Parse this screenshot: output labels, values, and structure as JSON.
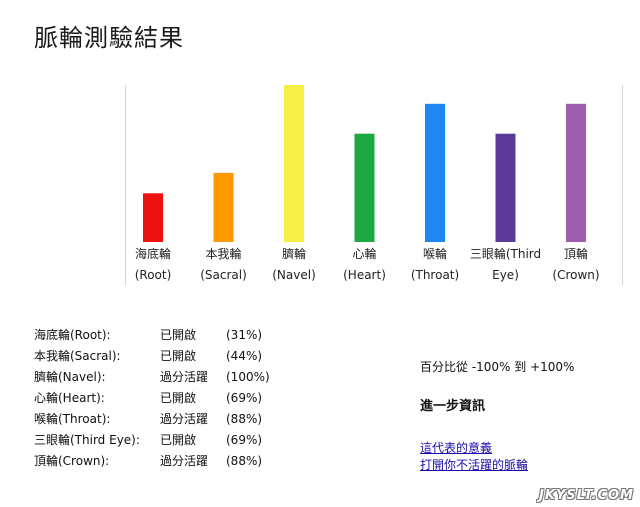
{
  "page": {
    "title": "脈輪測驗結果"
  },
  "chart_data": {
    "type": "bar",
    "categories": [
      [
        "海底輪",
        "(Root)"
      ],
      [
        "本我輪",
        "(Sacral)"
      ],
      [
        "臍輪",
        "(Navel)"
      ],
      [
        "心輪",
        "(Heart)"
      ],
      [
        "喉輪",
        "(Throat)"
      ],
      [
        "三眼輪(Third",
        "Eye)"
      ],
      [
        "頂輪",
        "(Crown)"
      ]
    ],
    "values": [
      31,
      44,
      100,
      69,
      88,
      69,
      88
    ],
    "colors": [
      "#ee1111",
      "#ff9900",
      "#f5ee44",
      "#1ca843",
      "#1e88f0",
      "#5c3b98",
      "#a05ead"
    ],
    "ylim": [
      -100,
      100
    ],
    "grid": false,
    "legend": "none"
  },
  "summary": [
    {
      "name": "海底輪(Root):",
      "state": "已開啟",
      "pct": "(31%)"
    },
    {
      "name": "本我輪(Sacral):",
      "state": "已開啟",
      "pct": "(44%)"
    },
    {
      "name": "臍輪(Navel):",
      "state": "過分活躍",
      "pct": "(100%)"
    },
    {
      "name": "心輪(Heart):",
      "state": "已開啟",
      "pct": "(69%)"
    },
    {
      "name": "喉輪(Throat):",
      "state": "過分活躍",
      "pct": "(88%)"
    },
    {
      "name": "三眼輪(Third Eye):",
      "state": "已開啟",
      "pct": "(69%)"
    },
    {
      "name": "頂輪(Crown):",
      "state": "過分活躍",
      "pct": "(88%)"
    }
  ],
  "info": {
    "range_text": "百分比從 -100% 到 +100%",
    "more_title": "進一步資訊",
    "link_meaning": "這代表的意義",
    "link_open": "打開你不活躍的脈輪"
  },
  "watermark": "JKYSLT.COM"
}
